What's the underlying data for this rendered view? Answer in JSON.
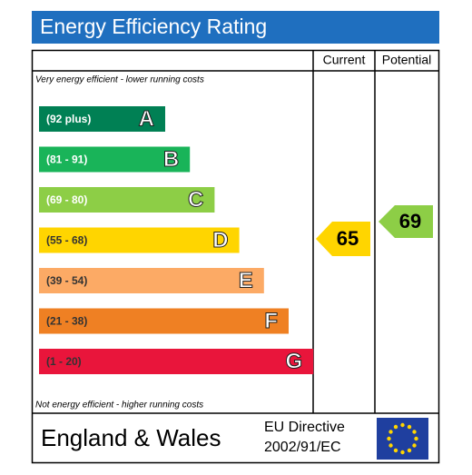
{
  "header": {
    "title": "Energy Efficiency Rating"
  },
  "columns": {
    "current": "Current",
    "potential": "Potential"
  },
  "notes": {
    "top": "Very energy efficient - lower running costs",
    "bottom": "Not energy efficient - higher running costs"
  },
  "bands": [
    {
      "range": "(92 plus)",
      "letter": "A",
      "color": "#008054"
    },
    {
      "range": "(81 - 91)",
      "letter": "B",
      "color": "#19b459"
    },
    {
      "range": "(69 - 80)",
      "letter": "C",
      "color": "#8dce46"
    },
    {
      "range": "(55 - 68)",
      "letter": "D",
      "color": "#ffd500"
    },
    {
      "range": "(39 - 54)",
      "letter": "E",
      "color": "#fcaa65"
    },
    {
      "range": "(21 - 38)",
      "letter": "F",
      "color": "#ef8023"
    },
    {
      "range": "(1 - 20)",
      "letter": "G",
      "color": "#e9153b"
    }
  ],
  "ratings": {
    "current": "65",
    "potential": "69"
  },
  "footer": {
    "region": "England & Wales",
    "directive_line1": "EU Directive",
    "directive_line2": "2002/91/EC"
  }
}
